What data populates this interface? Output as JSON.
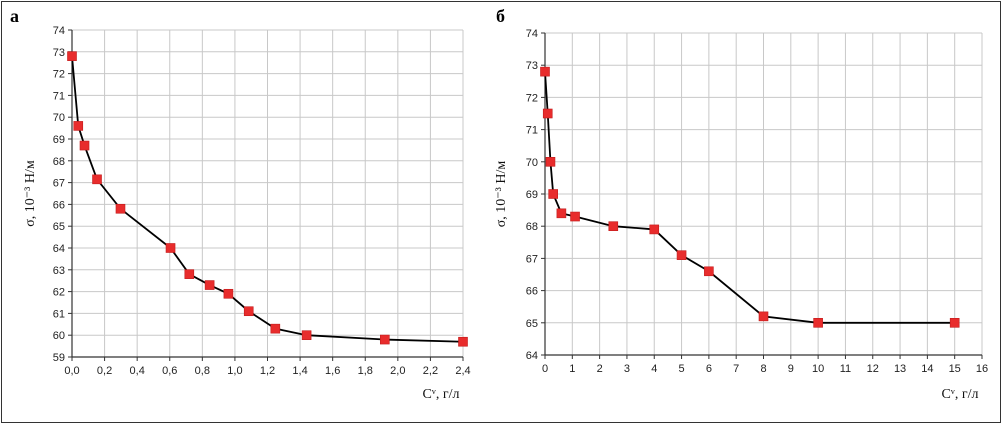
{
  "chart_data": [
    {
      "panel": "а",
      "type": "line",
      "xlabel": "Cᵛ, г/л",
      "ylabel": "σ, 10⁻³ Н/м",
      "xlim": [
        0,
        2.5
      ],
      "ylim": [
        59,
        74
      ],
      "xticks": [
        "0,0",
        "0,2",
        "0,4",
        "0,6",
        "0,8",
        "1,0",
        "1,2",
        "1,4",
        "1,6",
        "1,8",
        "2,0",
        "2,2",
        "2,4"
      ],
      "yticks": [
        "59",
        "60",
        "61",
        "62",
        "63",
        "64",
        "65",
        "66",
        "67",
        "68",
        "69",
        "70",
        "71",
        "72",
        "73",
        "74"
      ],
      "grid": true,
      "marker": "square",
      "marker_color": "#e82c2c",
      "line_color": "#000000",
      "x": [
        0.0,
        0.04,
        0.08,
        0.16,
        0.31,
        0.63,
        0.75,
        0.88,
        1.0,
        1.13,
        1.3,
        1.5,
        2.0,
        2.5
      ],
      "y": [
        72.8,
        69.6,
        68.7,
        67.15,
        65.8,
        64.0,
        62.8,
        62.3,
        61.9,
        61.1,
        60.3,
        60.0,
        59.8,
        59.7
      ]
    },
    {
      "panel": "б",
      "type": "line",
      "xlabel": "Cᵛ, г/л",
      "ylabel": "σ, 10⁻³ Н/м",
      "xlim": [
        0,
        16
      ],
      "ylim": [
        64,
        74
      ],
      "xticks": [
        "0",
        "1",
        "2",
        "3",
        "4",
        "5",
        "6",
        "7",
        "8",
        "9",
        "10",
        "11",
        "12",
        "13",
        "14",
        "15",
        "16"
      ],
      "yticks": [
        "64",
        "65",
        "66",
        "67",
        "68",
        "69",
        "70",
        "71",
        "72",
        "73",
        "74"
      ],
      "grid": true,
      "marker": "square",
      "marker_color": "#e82c2c",
      "line_color": "#000000",
      "x": [
        0.0,
        0.1,
        0.2,
        0.3,
        0.6,
        1.1,
        2.5,
        4.0,
        5.0,
        6.0,
        8.0,
        10.0,
        15.0
      ],
      "y": [
        72.8,
        71.5,
        70.0,
        69.0,
        68.4,
        68.3,
        68.0,
        67.9,
        67.1,
        66.6,
        65.2,
        65.0,
        65.0
      ]
    }
  ]
}
